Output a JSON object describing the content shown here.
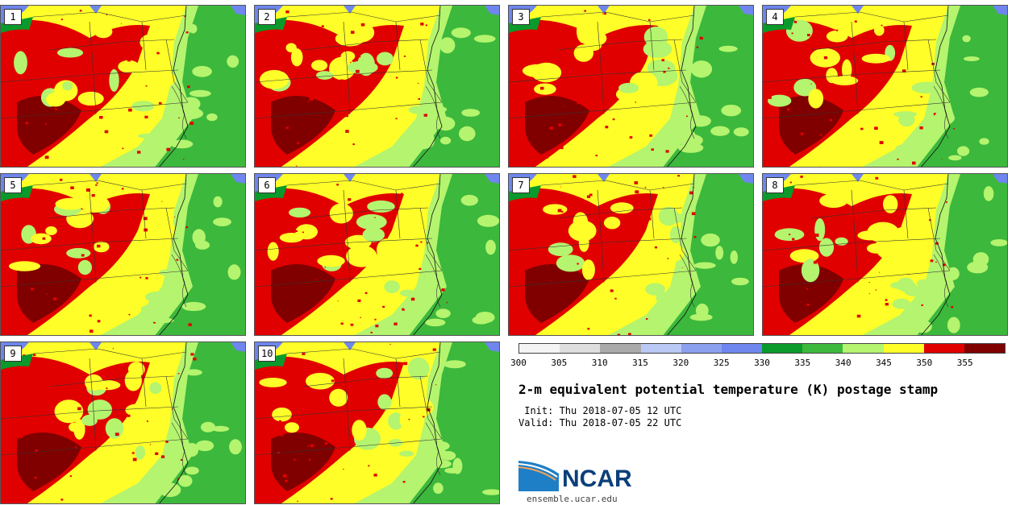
{
  "title": "2-m equivalent potential temperature (K) postage stamp",
  "init": " Init: Thu 2018-07-05 12 UTC",
  "valid": "Valid: Thu 2018-07-05 22 UTC",
  "logo_text": "NCAR",
  "website": "ensemble.ucar.edu",
  "panels": [
    {
      "label": "1"
    },
    {
      "label": "2"
    },
    {
      "label": "3"
    },
    {
      "label": "4"
    },
    {
      "label": "5"
    },
    {
      "label": "6"
    },
    {
      "label": "7"
    },
    {
      "label": "8"
    },
    {
      "label": "9"
    },
    {
      "label": "10"
    }
  ],
  "colorbar": {
    "ticks": [
      "300",
      "305",
      "310",
      "315",
      "320",
      "325",
      "330",
      "335",
      "340",
      "345",
      "350",
      "355"
    ],
    "colors": [
      "#f4f4f4",
      "#dedede",
      "#aaaaaa",
      "#b9c8f4",
      "#8ca0ef",
      "#6e86ee",
      "#0a9a2b",
      "#3cb83c",
      "#b4f46e",
      "#fffe28",
      "#e10000",
      "#800000"
    ]
  },
  "map_colors": {
    "ocean": "#3cb83c",
    "water": "#6e86ee",
    "band_low": "#0a9a2b",
    "band_light": "#b4f46e",
    "band_yellow": "#fffe28",
    "band_red": "#e10000",
    "band_dark": "#800000",
    "border": "#333333",
    "logo_blue": "#1f7fc6",
    "logo_navy": "#0b3f7a"
  }
}
